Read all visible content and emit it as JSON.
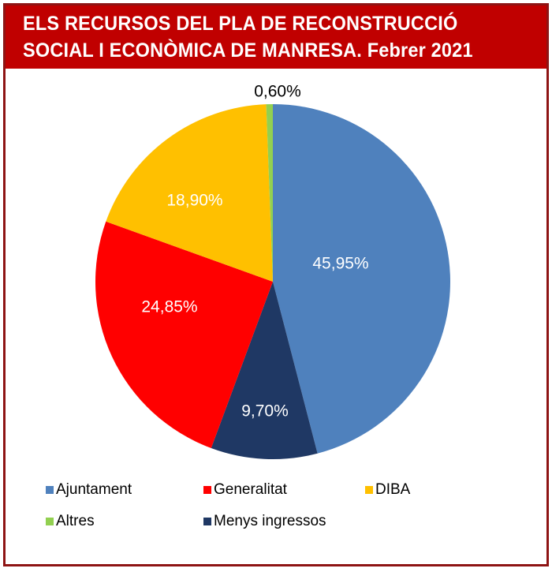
{
  "chart_data": {
    "type": "pie",
    "title": "ELS RECURSOS DEL PLA DE RECONSTRUCCIÓ SOCIAL I ECONÒMICA DE MANRESA. Febrer 2021",
    "title_lines": [
      "ELS RECURSOS DEL PLA DE RECONSTRUCCIÓ",
      "SOCIAL I ECONÒMICA DE MANRESA. Febrer 2021"
    ],
    "slices": [
      {
        "name": "Ajuntament",
        "value": 45.95,
        "label": "45,95%",
        "color": "#4F81BD"
      },
      {
        "name": "Menys ingressos",
        "value": 9.7,
        "label": "9,70%",
        "color": "#1F3864"
      },
      {
        "name": "Generalitat",
        "value": 24.85,
        "label": "24,85%",
        "color": "#FF0000"
      },
      {
        "name": "DIBA",
        "value": 18.9,
        "label": "18,90%",
        "color": "#FFC000"
      },
      {
        "name": "Altres",
        "value": 0.6,
        "label": "0,60%",
        "color": "#92D050"
      }
    ],
    "legend": [
      "Ajuntament",
      "Generalitat",
      "DIBA",
      "Altres",
      "Menys ingressos"
    ],
    "legend_placement": "bottom"
  },
  "colors": {
    "header": "#C00000",
    "border": "#8E1414"
  }
}
